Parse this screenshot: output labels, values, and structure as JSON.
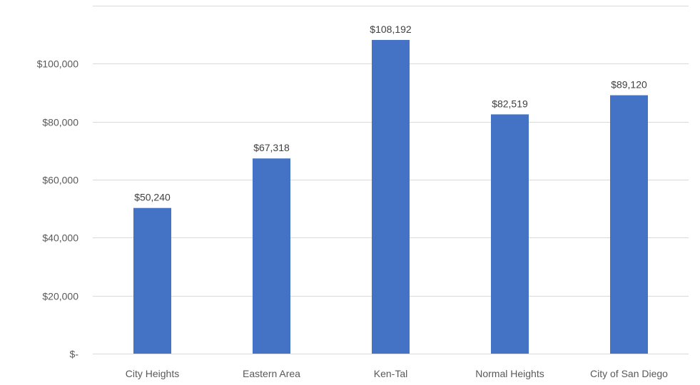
{
  "chart_data": {
    "type": "bar",
    "categories": [
      "City Heights",
      "Eastern Area",
      "Ken-Tal",
      "Normal Heights",
      "City of San Diego"
    ],
    "values": [
      50240,
      67318,
      108192,
      82519,
      89120
    ],
    "data_labels": [
      "$50,240",
      "$67,318",
      "$108,192",
      "$82,519",
      "$89,120"
    ],
    "ylim": [
      0,
      120000
    ],
    "yticks": [
      0,
      20000,
      40000,
      60000,
      80000,
      100000,
      120000
    ],
    "ytick_labels": [
      "$-",
      "$20,000",
      "$40,000",
      "$60,000",
      "$80,000",
      "$100,000",
      ""
    ],
    "grid": true,
    "legend": "none",
    "colors": {
      "bar": "#4472C4"
    }
  }
}
